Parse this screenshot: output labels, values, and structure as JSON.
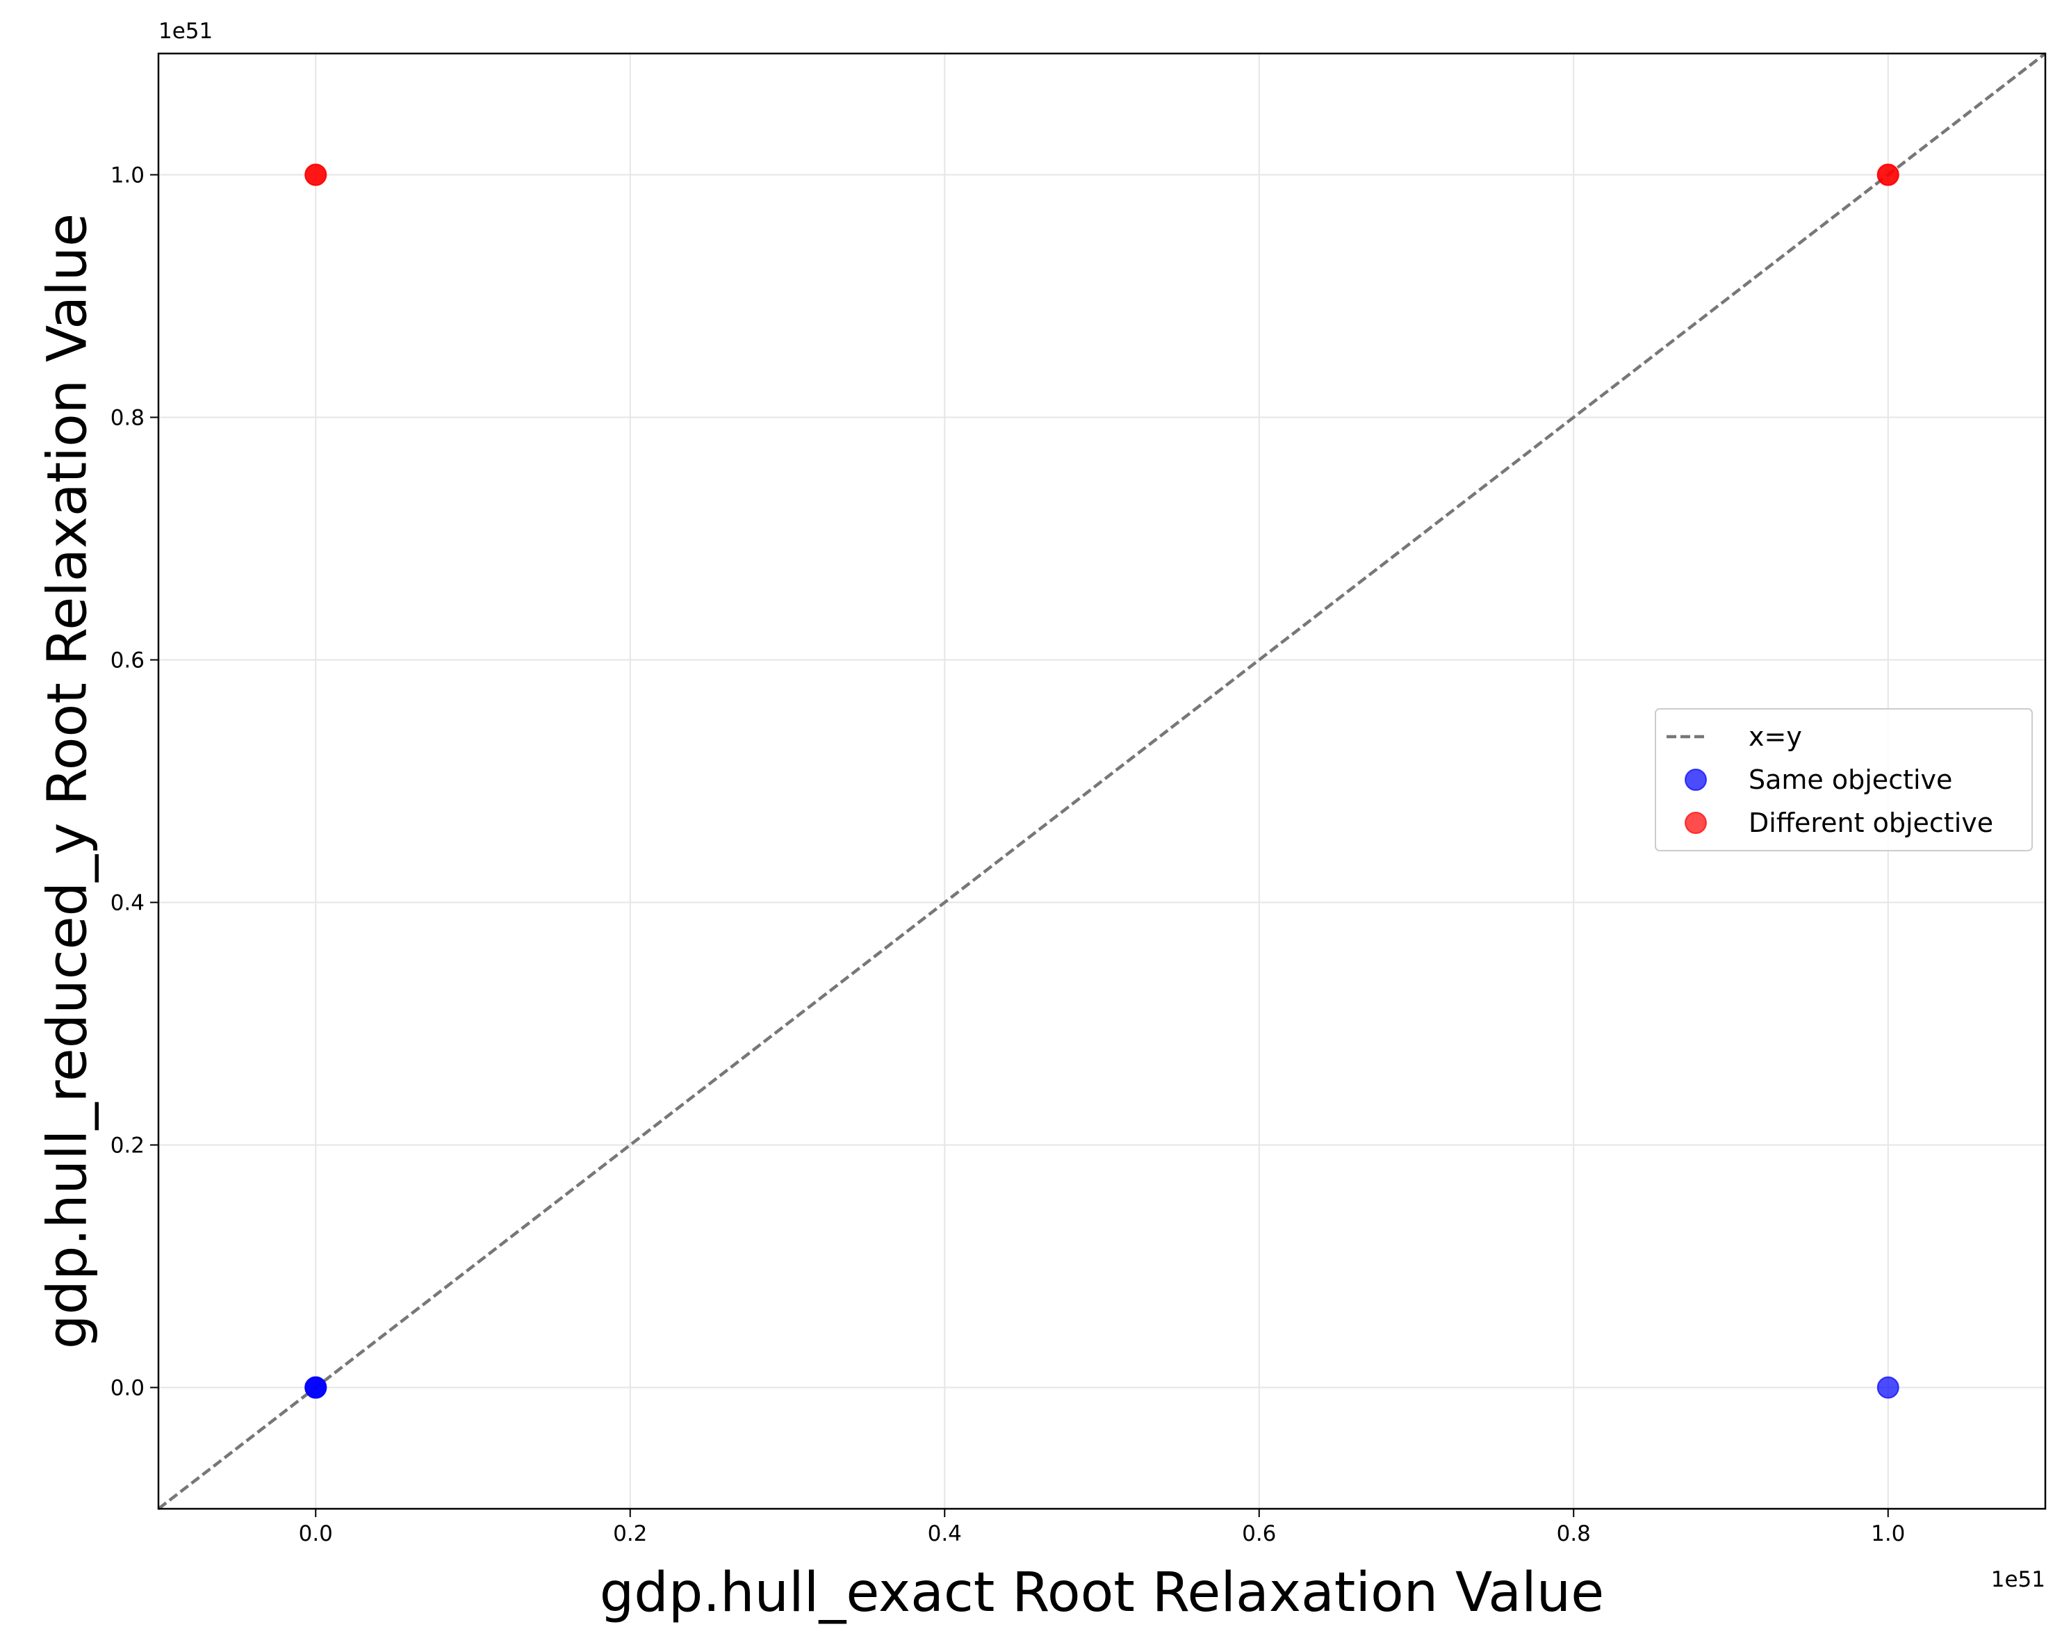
{
  "chart_data": {
    "type": "scatter",
    "title": "",
    "xlabel": "gdp.hull_exact Root Relaxation Value",
    "ylabel": "gdp.hull_reduced_y Root Relaxation Value",
    "x_offset_label": "1e51",
    "y_offset_label": "1e51",
    "xlim": [
      -0.1,
      1.1
    ],
    "ylim": [
      -0.1,
      1.1
    ],
    "xticks": [
      0.0,
      0.2,
      0.4,
      0.6,
      0.8,
      1.0
    ],
    "yticks": [
      0.0,
      0.2,
      0.4,
      0.6,
      0.8,
      1.0
    ],
    "xtick_labels": [
      "0.0",
      "0.2",
      "0.4",
      "0.6",
      "0.8",
      "1.0"
    ],
    "ytick_labels": [
      "0.0",
      "0.2",
      "0.4",
      "0.6",
      "0.8",
      "1.0"
    ],
    "grid": true,
    "legend_position": "center-right",
    "reference_line": {
      "name": "x=y",
      "style": "dashed",
      "color": "#777777"
    },
    "series": [
      {
        "name": "Same objective",
        "color": "#0000ff",
        "opacity": 0.7,
        "points": [
          {
            "x": 0.0,
            "y": 0.0
          },
          {
            "x": 0.0,
            "y": 0.0
          },
          {
            "x": 0.0,
            "y": 0.0
          },
          {
            "x": 1.0,
            "y": 0.0
          }
        ]
      },
      {
        "name": "Different objective",
        "color": "#ff0000",
        "opacity": 0.7,
        "points": [
          {
            "x": 0.0,
            "y": 1.0
          },
          {
            "x": 0.0,
            "y": 1.0
          },
          {
            "x": 1.0,
            "y": 1.0
          },
          {
            "x": 1.0,
            "y": 1.0
          }
        ]
      }
    ]
  }
}
